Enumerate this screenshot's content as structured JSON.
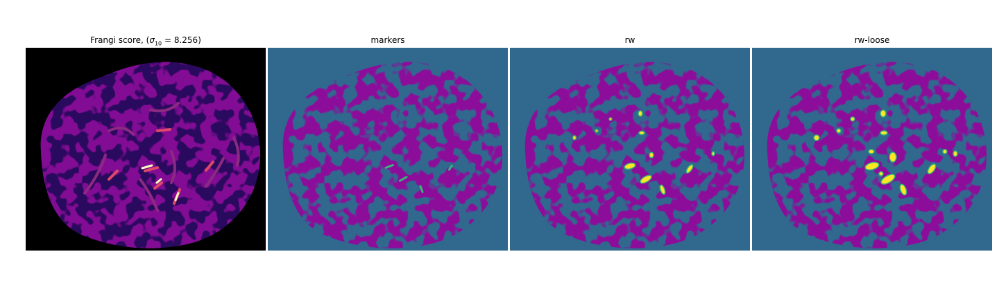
{
  "panels": [
    {
      "title_prefix": "Frangi score, (",
      "title_math": "σ",
      "title_sub": "10",
      "title_suffix": " = 8.256)",
      "colormap": "magma",
      "colors": {
        "background": "#000000",
        "vessel_dark": "#3b0f70",
        "vessel_mid": "#8c2981",
        "vessel_bright": "#de4968",
        "vessel_peak": "#fcfdbf"
      }
    },
    {
      "title": "markers",
      "colormap": "viridis",
      "colors": {
        "background": "#31688e",
        "tissue": "#440154",
        "marker": "#35b779"
      }
    },
    {
      "title": "rw",
      "colormap": "viridis",
      "colors": {
        "background": "#31688e",
        "tissue": "#440154",
        "segment_edge": "#35b779",
        "segment_fill": "#fde725"
      }
    },
    {
      "title": "rw-loose",
      "colormap": "viridis",
      "colors": {
        "background": "#31688e",
        "tissue": "#440154",
        "segment_edge": "#35b779",
        "segment_fill": "#fde725"
      }
    }
  ]
}
